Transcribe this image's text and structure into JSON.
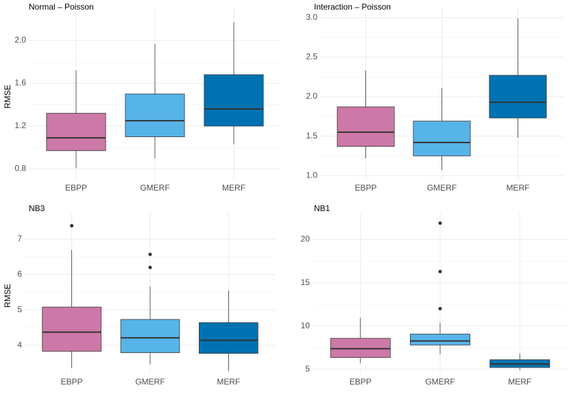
{
  "chart_data": [
    {
      "type": "box",
      "title": "Normal – Poisson",
      "y_label": "RMSE",
      "categories": [
        "EBPP",
        "GMERF",
        "MERF"
      ],
      "colors": [
        "#cc79a7",
        "#56b4e9",
        "#0072b2"
      ],
      "low": [
        0.81,
        0.9,
        1.03
      ],
      "q1": [
        0.97,
        1.1,
        1.2
      ],
      "median": [
        1.09,
        1.25,
        1.36
      ],
      "q3": [
        1.32,
        1.5,
        1.68
      ],
      "high": [
        1.72,
        1.97,
        2.17
      ],
      "outliers": [
        [],
        [],
        []
      ],
      "ylim": [
        0.7,
        2.25
      ],
      "yticks": [
        {
          "value": 0.8,
          "label": "0.8"
        },
        {
          "value": 1.2,
          "label": "1.2"
        },
        {
          "value": 1.6,
          "label": "1.6"
        },
        {
          "value": 2.0,
          "label": "2.0"
        }
      ],
      "grid": true
    },
    {
      "type": "box",
      "title": "Interaction – Poisson",
      "categories": [
        "EBPP",
        "GMERF",
        "MERF"
      ],
      "colors": [
        "#cc79a7",
        "#56b4e9",
        "#0072b2"
      ],
      "low": [
        1.22,
        1.07,
        1.48
      ],
      "q1": [
        1.37,
        1.25,
        1.73
      ],
      "median": [
        1.55,
        1.42,
        1.93
      ],
      "q3": [
        1.87,
        1.69,
        2.27
      ],
      "high": [
        2.33,
        2.11,
        2.99
      ],
      "outliers": [
        [],
        [],
        []
      ],
      "ylim": [
        0.95,
        3.05
      ],
      "yticks": [
        {
          "value": 1.0,
          "label": "1.0"
        },
        1.5,
        {
          "value": 2.0,
          "label": "2.0"
        },
        2.5,
        {
          "value": 3.0,
          "label": "3.0"
        }
      ],
      "grid": true
    },
    {
      "type": "box",
      "title": "NB3",
      "y_label": "RMSE",
      "categories": [
        "EBPP",
        "GMERF",
        "MERF"
      ],
      "colors": [
        "#cc79a7",
        "#56b4e9",
        "#0072b2"
      ],
      "low": [
        3.36,
        3.46,
        3.27
      ],
      "q1": [
        3.83,
        3.79,
        3.77
      ],
      "median": [
        4.37,
        4.21,
        4.14
      ],
      "q3": [
        5.08,
        4.73,
        4.64
      ],
      "high": [
        6.69,
        5.66,
        5.55
      ],
      "outliers": [
        [
          7.38
        ],
        [
          6.57,
          6.2
        ],
        []
      ],
      "ylim": [
        3.2,
        7.6
      ],
      "yticks": [
        4,
        5,
        6,
        7
      ],
      "grid": true
    },
    {
      "type": "box",
      "title": "NB1",
      "categories": [
        "EBPP",
        "GMERF",
        "MERF"
      ],
      "colors": [
        "#cc79a7",
        "#56b4e9",
        "#0072b2"
      ],
      "low": [
        5.7,
        6.75,
        4.9
      ],
      "q1": [
        6.35,
        7.8,
        5.2
      ],
      "median": [
        7.37,
        8.27,
        5.6
      ],
      "q3": [
        8.57,
        9.06,
        6.1
      ],
      "high": [
        10.96,
        10.4,
        6.8
      ],
      "outliers": [
        [],
        [
          21.9,
          16.3,
          12.0
        ],
        []
      ],
      "ylim": [
        4.5,
        22.5
      ],
      "yticks": [
        5,
        10,
        15,
        20
      ],
      "grid": true
    }
  ]
}
